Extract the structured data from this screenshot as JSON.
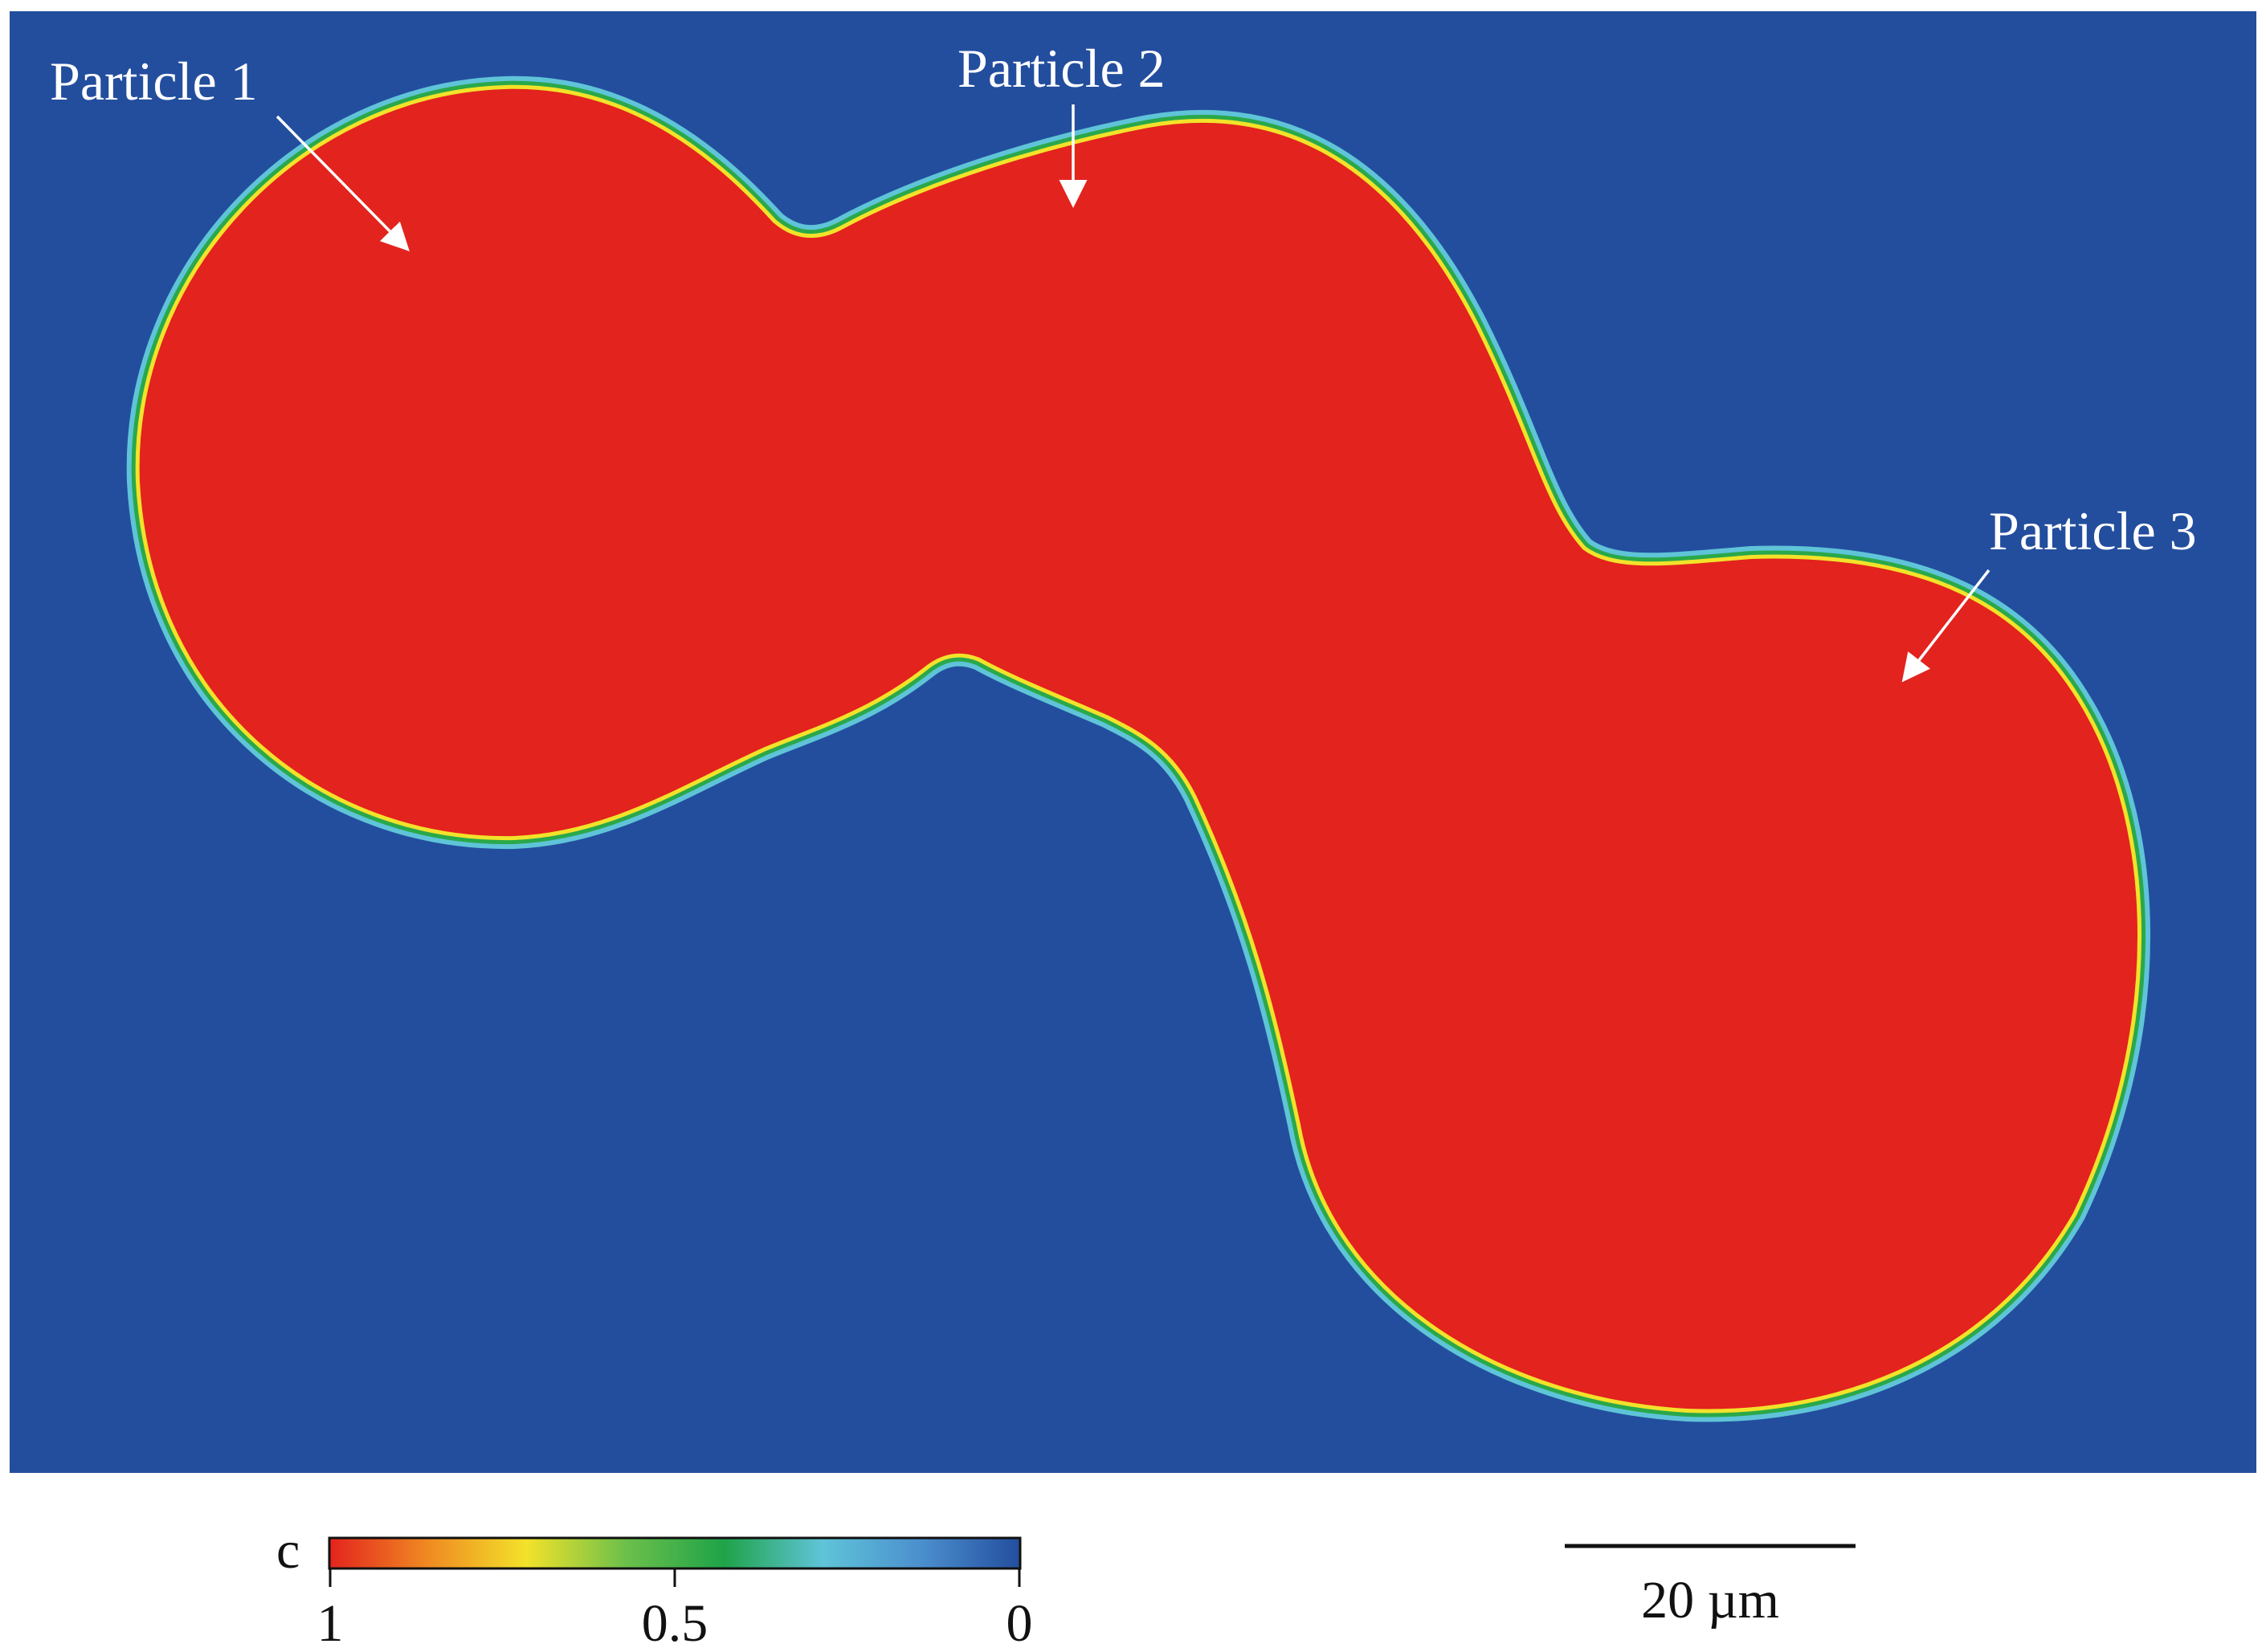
{
  "particles": [
    {
      "label": "Particle 1"
    },
    {
      "label": "Particle 2"
    },
    {
      "label": "Particle 3"
    }
  ],
  "colorbar": {
    "variable": "c",
    "ticks": [
      "1",
      "0.5",
      "0"
    ],
    "colors": [
      "#e3231e",
      "#f08a22",
      "#f2e22a",
      "#6cc04a",
      "#1fa349",
      "#5fc4d8",
      "#4b8fce",
      "#234e9e"
    ]
  },
  "scale_bar": {
    "label": "20 µm"
  },
  "colors": {
    "background": "#234e9e",
    "particle": "#e3231e",
    "interface_yellow": "#f2e22a",
    "interface_green": "#2aa84a",
    "interface_cyan": "#5fc4d8"
  }
}
